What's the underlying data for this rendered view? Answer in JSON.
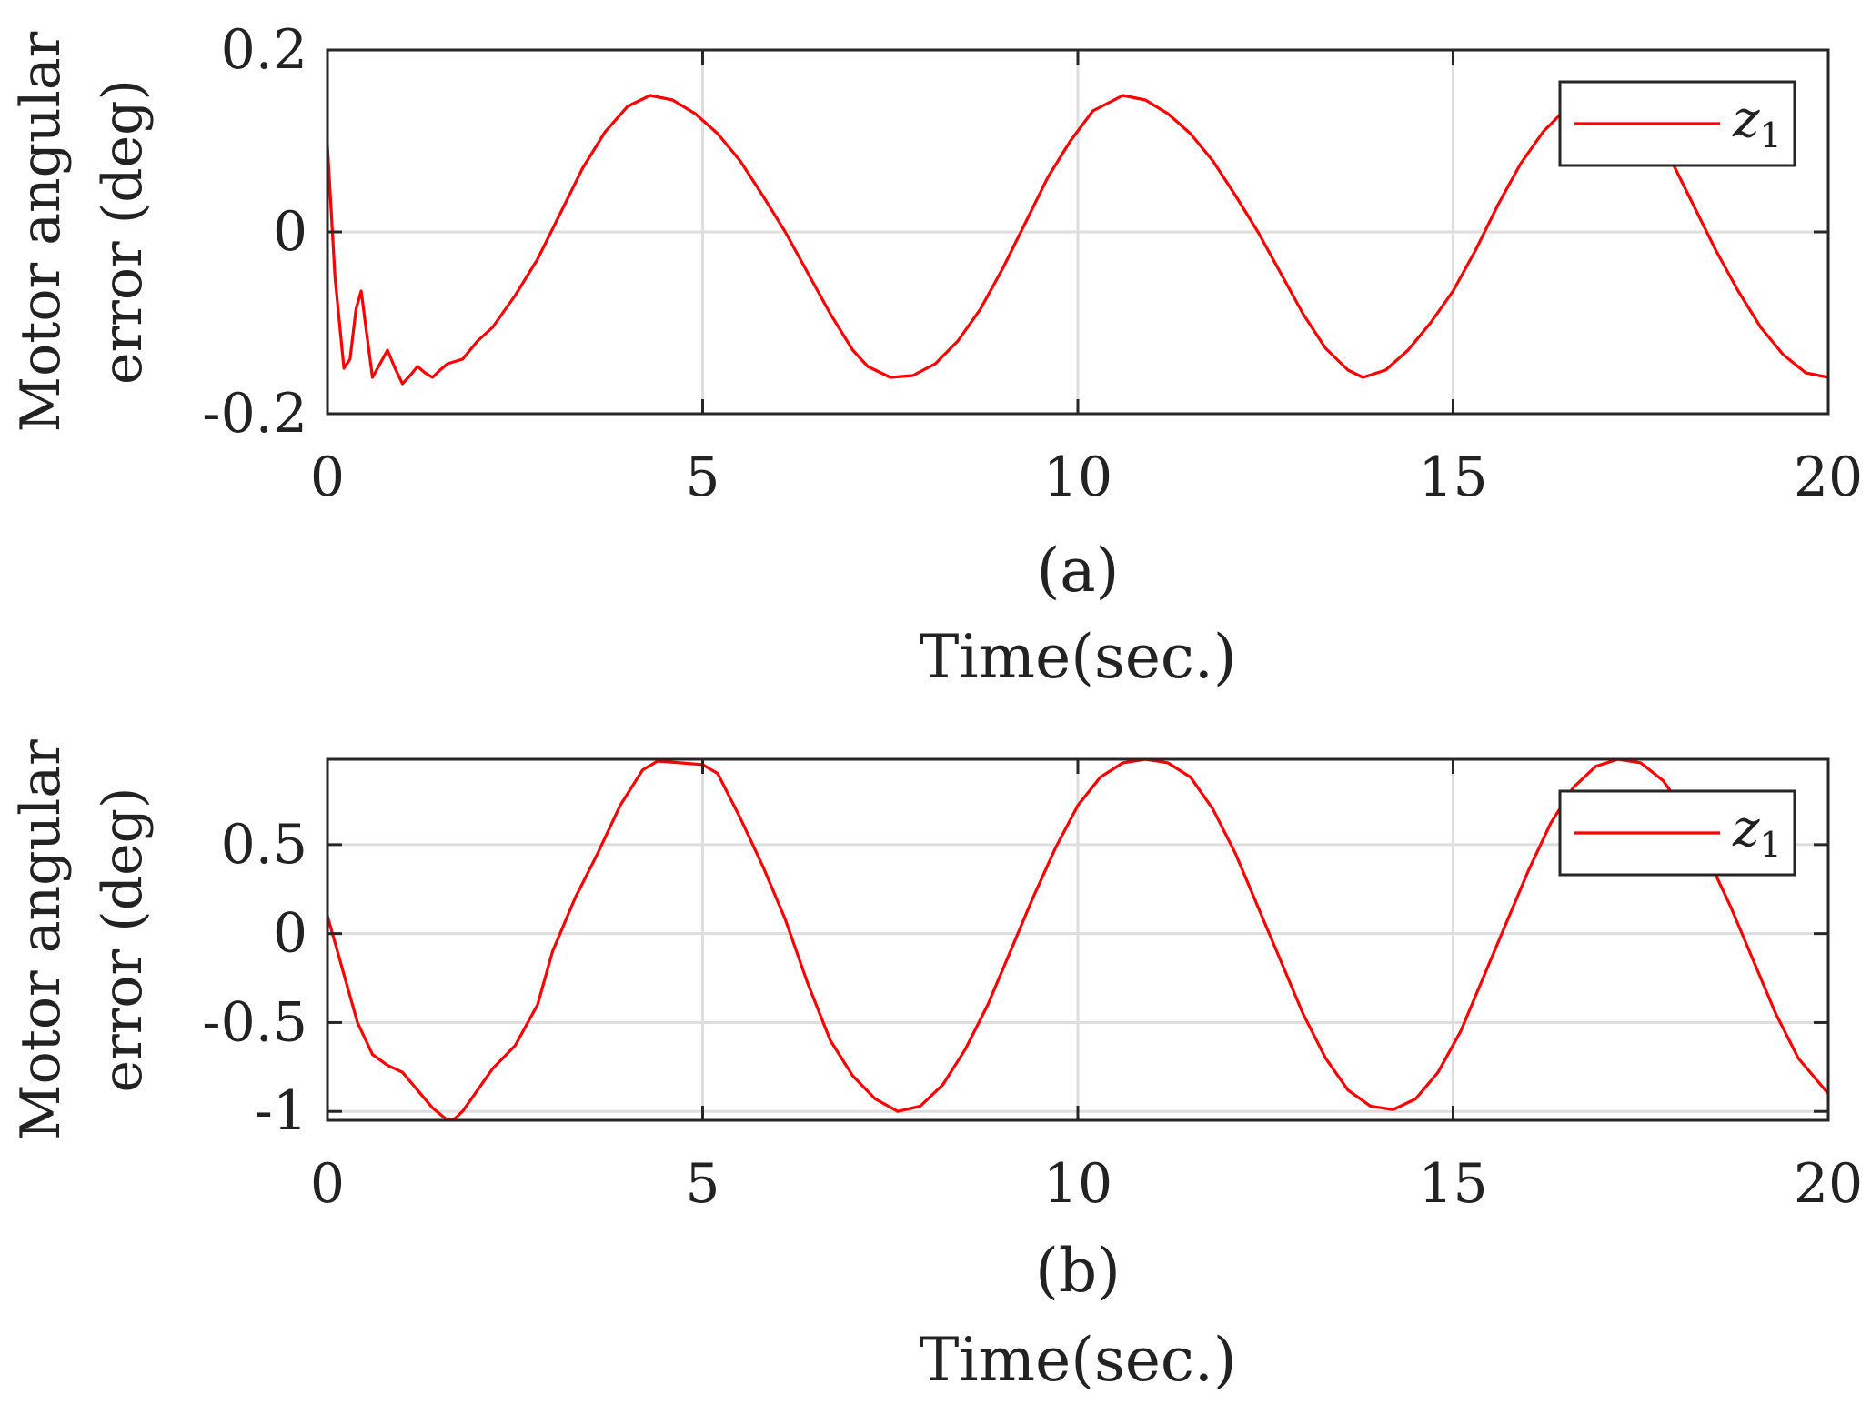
{
  "chart_data": [
    {
      "type": "line",
      "caption": "(a)",
      "xlabel": "Time(sec.)",
      "ylabel_lines": [
        "Motor angular",
        "error (deg)"
      ],
      "xlim": [
        0,
        20
      ],
      "ylim": [
        -0.2,
        0.2
      ],
      "xticks": [
        0,
        5,
        10,
        15,
        20
      ],
      "xtick_labels": [
        "0",
        "5",
        "10",
        "15",
        "20"
      ],
      "yticks": [
        -0.2,
        0,
        0.2
      ],
      "ytick_labels": [
        "-0.2",
        "0",
        "0.2"
      ],
      "grid": true,
      "legend_position": "top-right",
      "series": [
        {
          "name": "z1",
          "color": "#ff0000",
          "x": [
            0,
            0.1,
            0.22,
            0.3,
            0.38,
            0.45,
            0.52,
            0.6,
            0.7,
            0.8,
            0.9,
            1.0,
            1.1,
            1.2,
            1.3,
            1.4,
            1.5,
            1.6,
            1.8,
            2.0,
            2.2,
            2.5,
            2.8,
            3.1,
            3.4,
            3.7,
            4.0,
            4.3,
            4.6,
            4.9,
            5.2,
            5.5,
            5.8,
            6.1,
            6.4,
            6.7,
            7.0,
            7.2,
            7.5,
            7.8,
            8.1,
            8.4,
            8.7,
            9.0,
            9.3,
            9.6,
            9.9,
            10.2,
            10.6,
            10.9,
            11.2,
            11.5,
            11.8,
            12.1,
            12.4,
            12.7,
            13.0,
            13.3,
            13.6,
            13.8,
            14.1,
            14.4,
            14.7,
            15.0,
            15.3,
            15.6,
            15.9,
            16.2,
            16.5,
            16.8,
            17.0,
            17.3,
            17.6,
            17.9,
            18.2,
            18.5,
            18.8,
            19.1,
            19.4,
            19.7,
            20.0
          ],
          "y": [
            0.095,
            -0.05,
            -0.15,
            -0.14,
            -0.085,
            -0.065,
            -0.11,
            -0.16,
            -0.145,
            -0.13,
            -0.15,
            -0.167,
            -0.158,
            -0.148,
            -0.155,
            -0.16,
            -0.152,
            -0.145,
            -0.14,
            -0.12,
            -0.105,
            -0.07,
            -0.03,
            0.02,
            0.07,
            0.11,
            0.138,
            0.15,
            0.145,
            0.13,
            0.108,
            0.078,
            0.04,
            0.0,
            -0.045,
            -0.09,
            -0.13,
            -0.148,
            -0.16,
            -0.158,
            -0.145,
            -0.12,
            -0.085,
            -0.04,
            0.01,
            0.06,
            0.1,
            0.133,
            0.15,
            0.145,
            0.13,
            0.108,
            0.078,
            0.04,
            0.0,
            -0.045,
            -0.09,
            -0.128,
            -0.152,
            -0.16,
            -0.152,
            -0.13,
            -0.1,
            -0.065,
            -0.02,
            0.03,
            0.075,
            0.11,
            0.135,
            0.148,
            0.15,
            0.14,
            0.115,
            0.08,
            0.03,
            -0.02,
            -0.065,
            -0.105,
            -0.135,
            -0.155,
            -0.16
          ]
        }
      ]
    },
    {
      "type": "line",
      "caption": "(b)",
      "xlabel": "Time(sec.)",
      "ylabel_lines": [
        "Motor angular",
        "error (deg)"
      ],
      "xlim": [
        0,
        20
      ],
      "ylim": [
        -1.05,
        0.98
      ],
      "xticks": [
        0,
        5,
        10,
        15,
        20
      ],
      "xtick_labels": [
        "0",
        "5",
        "10",
        "15",
        "20"
      ],
      "yticks": [
        -1,
        -0.5,
        0,
        0.5
      ],
      "ytick_labels": [
        "-1",
        "-0.5",
        "0",
        "0.5"
      ],
      "grid": true,
      "legend_position": "top-right",
      "series": [
        {
          "name": "z1",
          "color": "#ff0000",
          "x": [
            0,
            0.2,
            0.4,
            0.6,
            0.8,
            1.0,
            1.2,
            1.4,
            1.6,
            1.7,
            1.8,
            2.0,
            2.2,
            2.5,
            2.8,
            3.0,
            3.3,
            3.6,
            3.9,
            4.2,
            4.4,
            4.7,
            5.0,
            5.2,
            5.5,
            5.8,
            6.1,
            6.4,
            6.7,
            7.0,
            7.3,
            7.6,
            7.9,
            8.2,
            8.5,
            8.8,
            9.1,
            9.4,
            9.7,
            10.0,
            10.3,
            10.6,
            10.9,
            11.2,
            11.5,
            11.8,
            12.1,
            12.4,
            12.7,
            13.0,
            13.3,
            13.6,
            13.9,
            14.2,
            14.5,
            14.8,
            15.1,
            15.4,
            15.7,
            16.0,
            16.3,
            16.6,
            16.9,
            17.2,
            17.5,
            17.8,
            18.1,
            18.4,
            18.7,
            19.0,
            19.3,
            19.6,
            20.0
          ],
          "y": [
            0.1,
            -0.2,
            -0.5,
            -0.68,
            -0.74,
            -0.78,
            -0.88,
            -0.98,
            -1.05,
            -1.04,
            -1.0,
            -0.88,
            -0.76,
            -0.63,
            -0.4,
            -0.1,
            0.2,
            0.45,
            0.72,
            0.92,
            0.97,
            0.96,
            0.95,
            0.9,
            0.65,
            0.38,
            0.08,
            -0.28,
            -0.6,
            -0.8,
            -0.93,
            -1.0,
            -0.97,
            -0.85,
            -0.65,
            -0.4,
            -0.1,
            0.2,
            0.48,
            0.72,
            0.88,
            0.96,
            0.98,
            0.96,
            0.88,
            0.7,
            0.45,
            0.15,
            -0.15,
            -0.45,
            -0.7,
            -0.88,
            -0.97,
            -0.99,
            -0.93,
            -0.78,
            -0.55,
            -0.25,
            0.05,
            0.35,
            0.62,
            0.82,
            0.94,
            0.98,
            0.96,
            0.86,
            0.68,
            0.42,
            0.15,
            -0.15,
            -0.45,
            -0.7,
            -0.9
          ]
        }
      ]
    }
  ]
}
